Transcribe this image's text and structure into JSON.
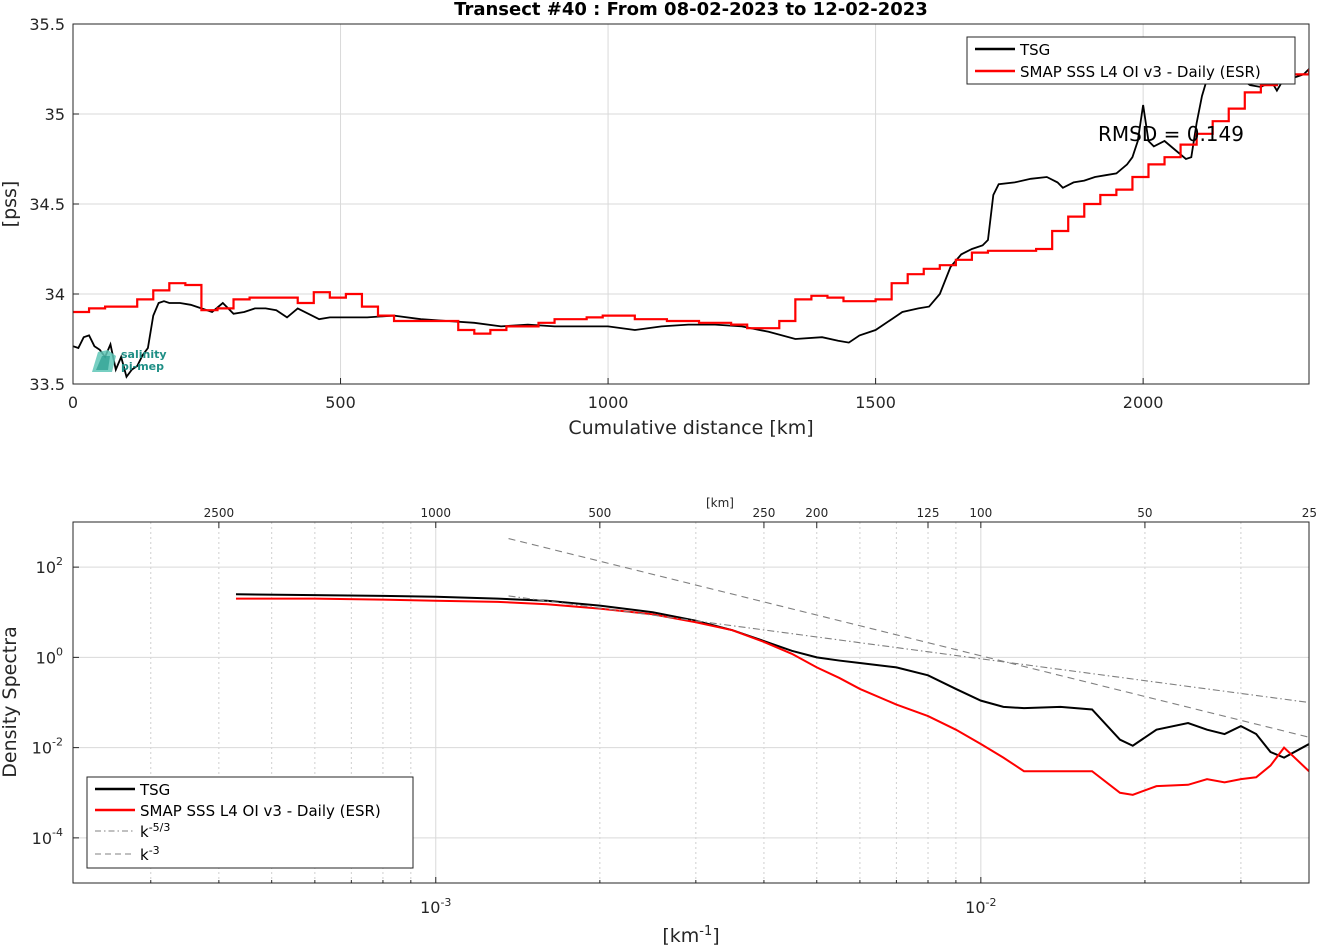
{
  "chart_data": [
    {
      "type": "line",
      "title": "Transect #40 : From 08-02-2023 to 12-02-2023",
      "xlabel": "Cumulative distance [km]",
      "ylabel": "[pss]",
      "xlim": [
        0,
        2310
      ],
      "ylim": [
        33.5,
        35.5
      ],
      "xticks": [
        0,
        500,
        1000,
        1500,
        2000
      ],
      "xtick_labels": [
        "0",
        "500",
        "1000",
        "1500",
        "2000"
      ],
      "yticks": [
        33.5,
        34,
        34.5,
        35,
        35.5
      ],
      "ytick_labels": [
        "33.5",
        "34",
        "34.5",
        "35",
        "35.5"
      ],
      "grid": true,
      "legend_position": "top-right",
      "annotation": "RMSD = 0.149",
      "logo_text": [
        "salinity",
        "pi-mep"
      ],
      "series": [
        {
          "name": "TSG",
          "color": "#000000",
          "x": [
            0,
            10,
            20,
            30,
            40,
            50,
            60,
            70,
            80,
            90,
            100,
            110,
            120,
            130,
            140,
            150,
            160,
            170,
            180,
            200,
            220,
            240,
            260,
            280,
            300,
            320,
            340,
            360,
            380,
            400,
            420,
            440,
            460,
            480,
            500,
            550,
            600,
            650,
            700,
            750,
            800,
            850,
            900,
            950,
            1000,
            1050,
            1100,
            1150,
            1200,
            1250,
            1300,
            1350,
            1400,
            1430,
            1450,
            1470,
            1500,
            1530,
            1550,
            1580,
            1600,
            1620,
            1640,
            1660,
            1680,
            1700,
            1710,
            1720,
            1730,
            1760,
            1790,
            1820,
            1840,
            1850,
            1870,
            1890,
            1910,
            1930,
            1950,
            1970,
            1980,
            1990,
            2000,
            2010,
            2020,
            2040,
            2060,
            2080,
            2090,
            2100,
            2110,
            2120,
            2140,
            2160,
            2180,
            2200,
            2220,
            2240,
            2250,
            2260,
            2280,
            2300,
            2310
          ],
          "y": [
            33.71,
            33.7,
            33.76,
            33.77,
            33.71,
            33.69,
            33.65,
            33.72,
            33.58,
            33.65,
            33.54,
            33.58,
            33.6,
            33.66,
            33.7,
            33.88,
            33.95,
            33.96,
            33.95,
            33.95,
            33.94,
            33.92,
            33.9,
            33.95,
            33.89,
            33.9,
            33.92,
            33.92,
            33.91,
            33.87,
            33.92,
            33.89,
            33.86,
            33.87,
            33.87,
            33.87,
            33.88,
            33.86,
            33.85,
            33.84,
            33.82,
            33.83,
            33.82,
            33.82,
            33.82,
            33.8,
            33.82,
            33.83,
            33.83,
            33.82,
            33.79,
            33.75,
            33.76,
            33.74,
            33.73,
            33.77,
            33.8,
            33.86,
            33.9,
            33.92,
            33.93,
            34.0,
            34.15,
            34.22,
            34.25,
            34.27,
            34.3,
            34.55,
            34.61,
            34.62,
            34.64,
            34.65,
            34.62,
            34.59,
            34.62,
            34.63,
            34.65,
            34.66,
            34.67,
            34.72,
            34.76,
            34.85,
            35.05,
            34.85,
            34.82,
            34.85,
            34.8,
            34.75,
            34.76,
            34.95,
            35.1,
            35.2,
            35.25,
            35.18,
            35.2,
            35.16,
            35.15,
            35.18,
            35.13,
            35.18,
            35.2,
            35.22,
            35.25
          ]
        },
        {
          "name": "SMAP SSS L4 OI v3 - Daily (ESR)",
          "color": "#ff0000",
          "x": [
            0,
            30,
            60,
            90,
            120,
            150,
            180,
            210,
            240,
            270,
            300,
            330,
            360,
            390,
            420,
            450,
            480,
            510,
            540,
            570,
            600,
            630,
            660,
            690,
            720,
            750,
            780,
            810,
            840,
            870,
            900,
            930,
            960,
            990,
            1020,
            1050,
            1080,
            1110,
            1140,
            1170,
            1200,
            1230,
            1260,
            1290,
            1320,
            1350,
            1380,
            1410,
            1440,
            1470,
            1500,
            1530,
            1560,
            1590,
            1620,
            1650,
            1680,
            1710,
            1740,
            1770,
            1800,
            1830,
            1860,
            1890,
            1920,
            1950,
            1980,
            2010,
            2040,
            2070,
            2100,
            2130,
            2160,
            2190,
            2220,
            2250,
            2280,
            2310
          ],
          "y": [
            33.9,
            33.92,
            33.93,
            33.93,
            33.97,
            34.02,
            34.06,
            34.05,
            33.91,
            33.92,
            33.97,
            33.98,
            33.98,
            33.98,
            33.95,
            34.01,
            33.98,
            34.0,
            33.93,
            33.88,
            33.85,
            33.85,
            33.85,
            33.85,
            33.8,
            33.78,
            33.8,
            33.82,
            33.82,
            33.84,
            33.86,
            33.86,
            33.87,
            33.88,
            33.88,
            33.86,
            33.86,
            33.85,
            33.85,
            33.84,
            33.84,
            33.83,
            33.81,
            33.81,
            33.85,
            33.97,
            33.99,
            33.98,
            33.96,
            33.96,
            33.97,
            34.06,
            34.11,
            34.14,
            34.16,
            34.19,
            34.23,
            34.24,
            34.24,
            34.24,
            34.25,
            34.35,
            34.43,
            34.5,
            34.55,
            34.58,
            34.65,
            34.72,
            34.76,
            34.83,
            34.89,
            34.96,
            35.03,
            35.12,
            35.16,
            35.18,
            35.22,
            35.25
          ]
        }
      ]
    },
    {
      "type": "line",
      "title": "",
      "xlabel": "[km$^{-1}$]",
      "ylabel": "Density Spectra",
      "x_scale": "log",
      "y_scale": "log",
      "xlim": [
        0.000216,
        0.04
      ],
      "ylim": [
        1e-05,
        1000
      ],
      "xticks_major": [
        0.001,
        0.01
      ],
      "xtick_labels_base": [
        "10",
        "10"
      ],
      "xtick_labels_exp": [
        "-3",
        "-2"
      ],
      "yticks": [
        0.0001,
        0.01,
        1,
        100
      ],
      "ytick_labels_base": [
        "10",
        "10",
        "10",
        "10"
      ],
      "ytick_labels_exp": [
        "-4",
        "-2",
        "0",
        "2"
      ],
      "top_axis_label": "[km]",
      "top_axis_ticks_km": [
        2500,
        1000,
        500,
        250,
        200,
        125,
        100,
        50,
        25
      ],
      "top_axis_tick_labels": [
        "2500",
        "1000",
        "500",
        "250",
        "200",
        "125",
        "100",
        "50",
        "25"
      ],
      "grid": true,
      "legend_position": "bottom-left",
      "legend_entries": [
        "TSG",
        "SMAP SSS L4 OI v3 - Daily (ESR)",
        "k",
        "k"
      ],
      "legend_exponents": [
        "",
        "",
        "-5/3",
        "-3"
      ],
      "series": [
        {
          "name": "TSG",
          "color": "#000000",
          "x": [
            0.00043,
            0.0006,
            0.0008,
            0.001,
            0.0013,
            0.0016,
            0.002,
            0.0025,
            0.003,
            0.0035,
            0.004,
            0.0045,
            0.005,
            0.0055,
            0.006,
            0.007,
            0.008,
            0.009,
            0.01,
            0.011,
            0.012,
            0.014,
            0.016,
            0.018,
            0.019,
            0.021,
            0.024,
            0.026,
            0.028,
            0.03,
            0.032,
            0.034,
            0.036,
            0.04
          ],
          "y": [
            25,
            24,
            23,
            22,
            20,
            18,
            14,
            10,
            6.5,
            4,
            2.3,
            1.4,
            1.0,
            0.85,
            0.75,
            0.6,
            0.4,
            0.2,
            0.11,
            0.08,
            0.075,
            0.08,
            0.07,
            0.015,
            0.011,
            0.025,
            0.035,
            0.025,
            0.02,
            0.03,
            0.02,
            0.008,
            0.006,
            0.012
          ]
        },
        {
          "name": "SMAP SSS L4 OI v3 - Daily (ESR)",
          "color": "#ff0000",
          "x": [
            0.00043,
            0.0006,
            0.0008,
            0.001,
            0.0013,
            0.0016,
            0.002,
            0.0025,
            0.003,
            0.0035,
            0.004,
            0.0045,
            0.005,
            0.0055,
            0.006,
            0.007,
            0.008,
            0.009,
            0.01,
            0.011,
            0.012,
            0.014,
            0.016,
            0.018,
            0.019,
            0.021,
            0.024,
            0.026,
            0.028,
            0.03,
            0.032,
            0.034,
            0.036,
            0.04
          ],
          "y": [
            20,
            20,
            19,
            18,
            17,
            15,
            12,
            9,
            6,
            4,
            2.2,
            1.2,
            0.6,
            0.35,
            0.2,
            0.09,
            0.05,
            0.025,
            0.012,
            0.006,
            0.003,
            0.003,
            0.003,
            0.001,
            0.0009,
            0.0014,
            0.0015,
            0.002,
            0.0017,
            0.002,
            0.0022,
            0.004,
            0.01,
            0.003
          ]
        },
        {
          "name": "k^-5/3",
          "color": "#808080",
          "dash": "dashdot",
          "x": [
            0.00136,
            0.04
          ],
          "y": [
            23,
            0.1
          ]
        },
        {
          "name": "k^-3",
          "color": "#808080",
          "dash": "dashed",
          "x": [
            0.00136,
            0.04
          ],
          "y": [
            430,
            0.017
          ]
        }
      ]
    }
  ]
}
